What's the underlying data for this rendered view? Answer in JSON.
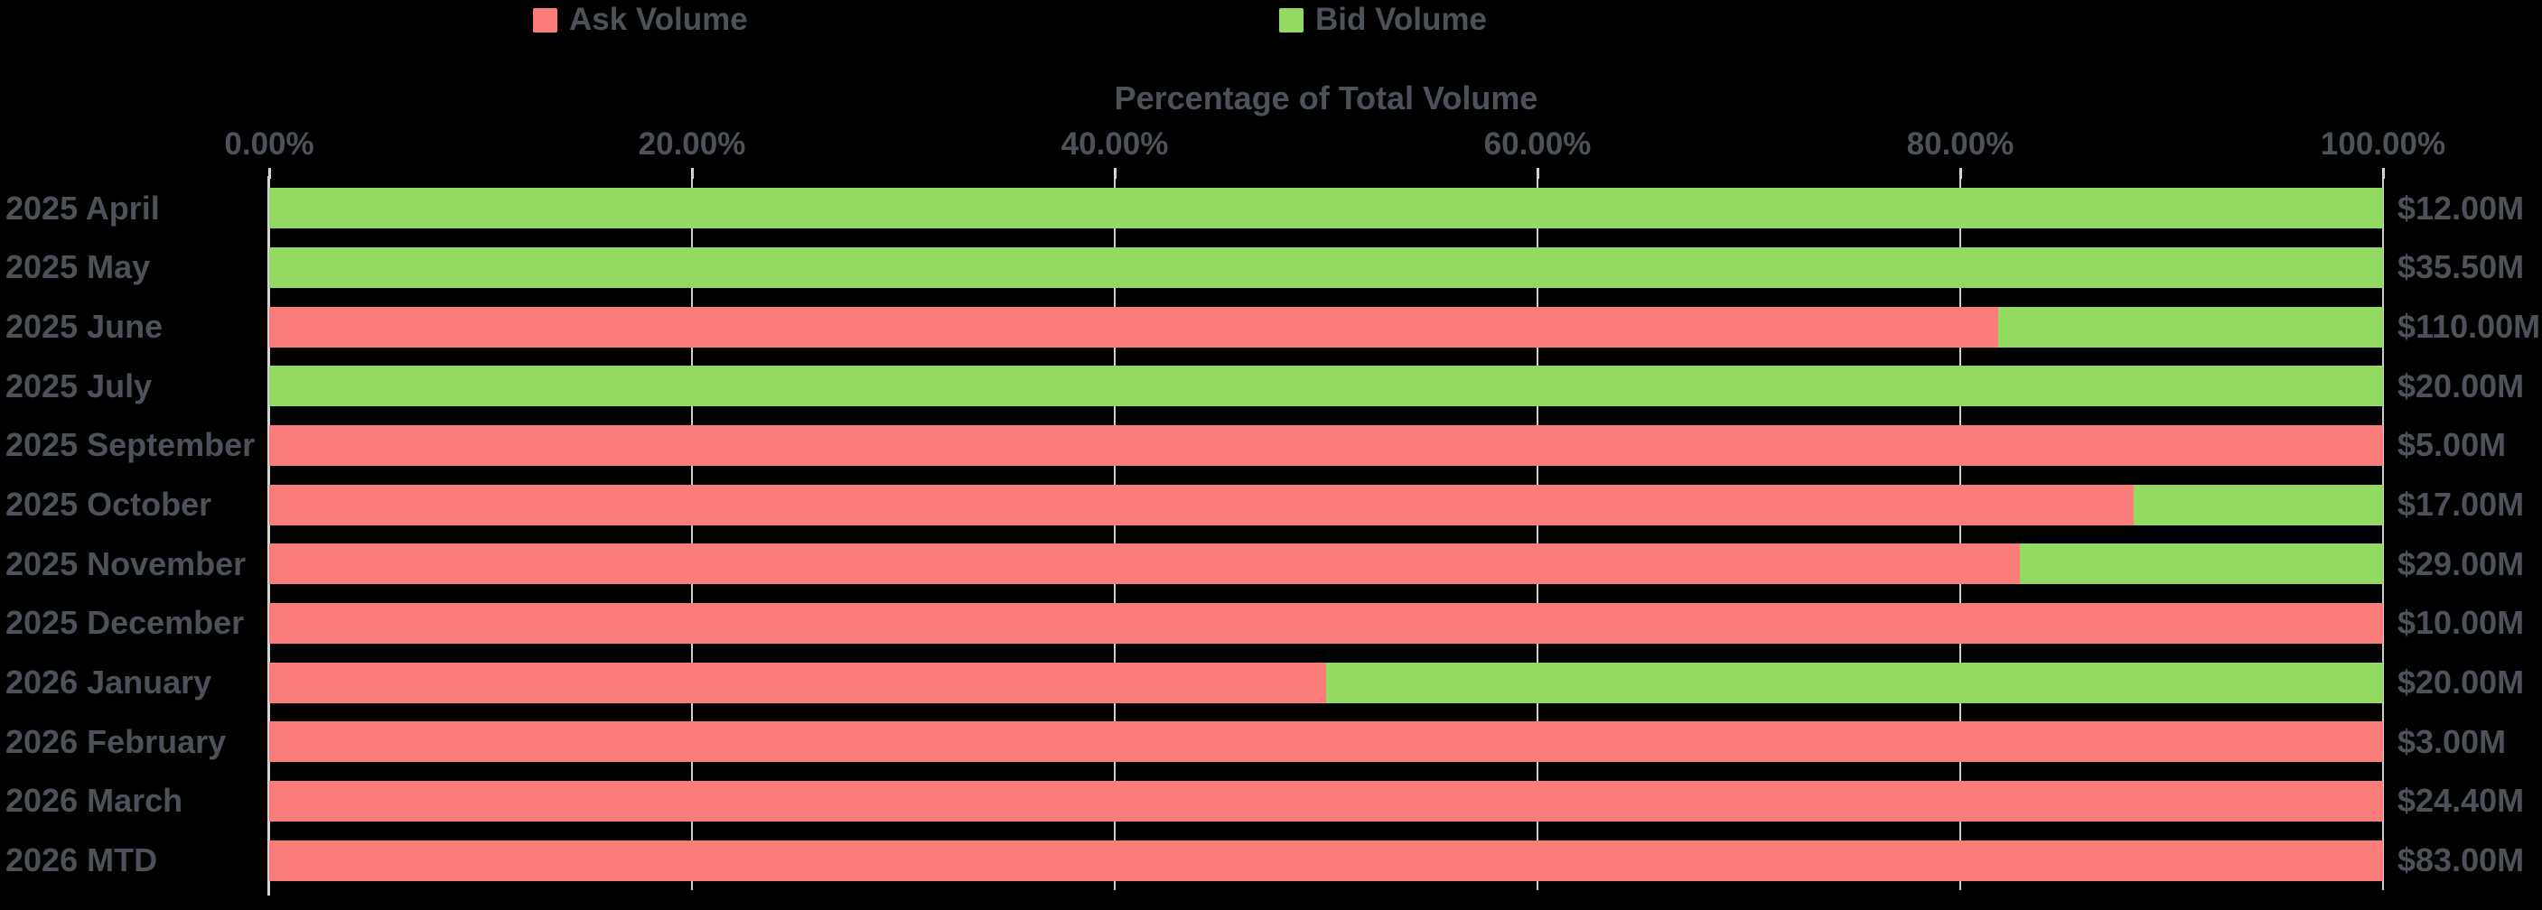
{
  "legend": {
    "items": [
      {
        "label": "Ask Volume",
        "series": "ask"
      },
      {
        "label": "Bid Volume",
        "series": "bid"
      }
    ]
  },
  "axis": {
    "title": "Percentage of Total Volume",
    "tick_labels": [
      "0.00%",
      "20.00%",
      "40.00%",
      "60.00%",
      "80.00%",
      "100.00%"
    ]
  },
  "colors": {
    "ask": "#fb7d7a",
    "bid": "#93da62",
    "text": "#4d525a",
    "axis_line": "#d4d4d4",
    "gridline": "#cdcdcd",
    "background": "#000000"
  },
  "chart_data": {
    "type": "bar",
    "orientation": "horizontal",
    "stacked": true,
    "title": "Percentage of Total Volume",
    "xlabel": "Percentage of Total Volume",
    "xlim": [
      0,
      100
    ],
    "x_ticks_pct": [
      0,
      20,
      40,
      60,
      80,
      100
    ],
    "grid": true,
    "legend_position": "top",
    "categories": [
      "2025 April",
      "2025 May",
      "2025 June",
      "2025 July",
      "2025 September",
      "2025 October",
      "2025 November",
      "2025 December",
      "2026 January",
      "2026 February",
      "2026 March",
      "2026 MTD"
    ],
    "series": [
      {
        "name": "Ask Volume",
        "color": "#fb7d7a",
        "values_pct": [
          0,
          0,
          81.8,
          0,
          100,
          88.2,
          82.8,
          100,
          50,
          100,
          100,
          100
        ]
      },
      {
        "name": "Bid Volume",
        "color": "#93da62",
        "values_pct": [
          100,
          100,
          18.2,
          100,
          0,
          11.8,
          17.2,
          0,
          50,
          0,
          0,
          0
        ]
      }
    ],
    "bar_total_labels": [
      "$12.00M",
      "$35.50M",
      "$110.00M",
      "$20.00M",
      "$5.00M",
      "$17.00M",
      "$29.00M",
      "$10.00M",
      "$20.00M",
      "$3.00M",
      "$24.40M",
      "$83.00M"
    ]
  }
}
